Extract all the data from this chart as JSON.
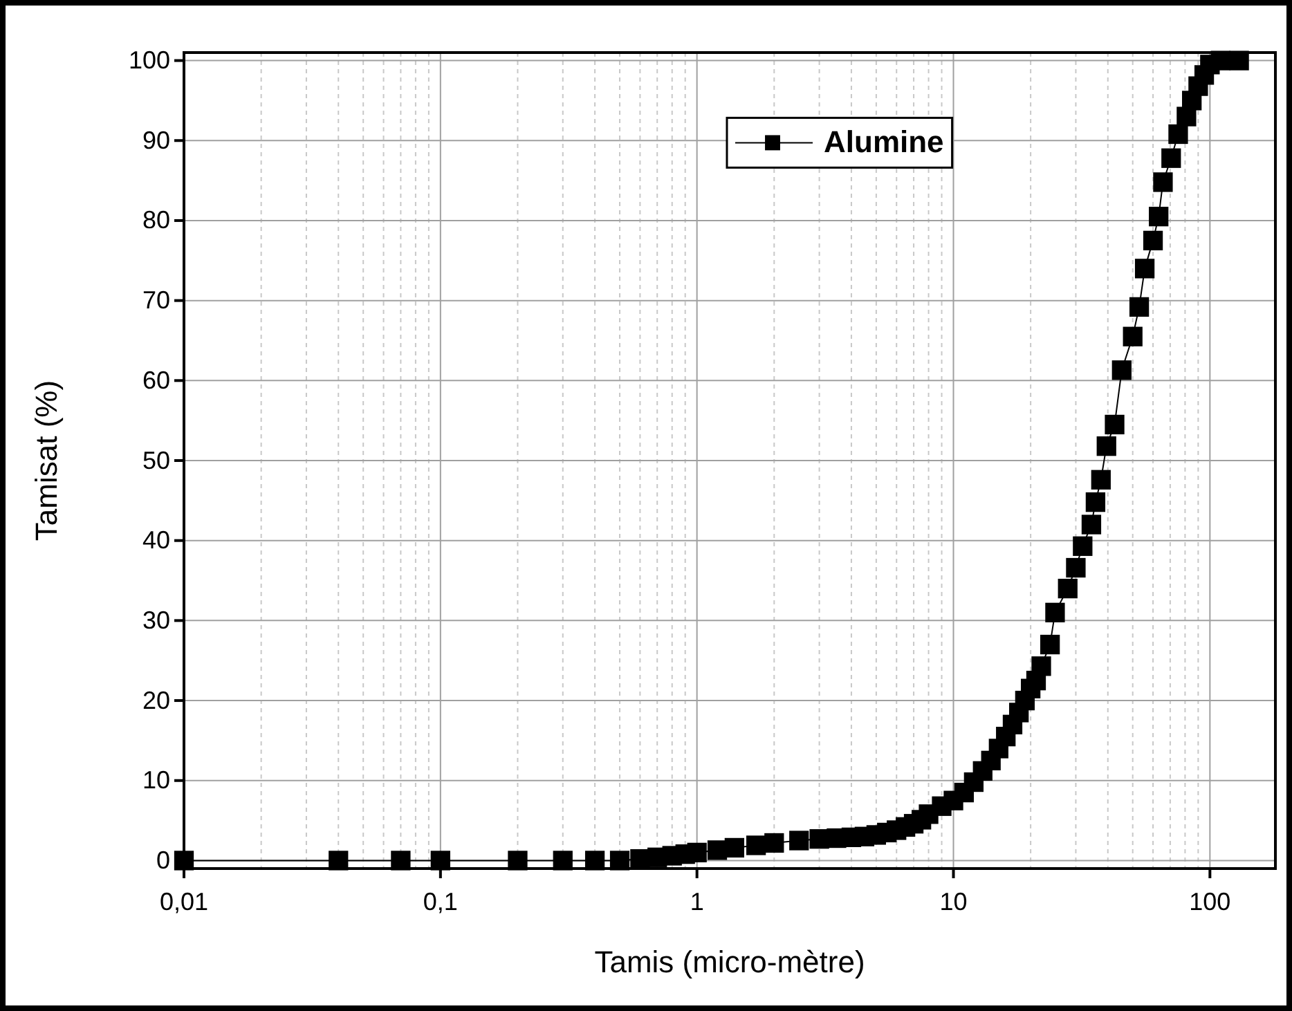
{
  "chart_data": {
    "type": "line",
    "xlabel": "Tamis (micro-mètre)",
    "ylabel": "Tamisat (%)",
    "log": "x",
    "grid": true,
    "legend": "top",
    "marker": "square",
    "line_style": "solid",
    "xlim": [
      0.01,
      180
    ],
    "ylim": [
      -1,
      101
    ],
    "xticks": [
      {
        "value": 0.01,
        "label": "0,01"
      },
      {
        "value": 0.1,
        "label": "0,1"
      },
      1,
      10,
      100
    ],
    "yticks": [
      0,
      10,
      20,
      30,
      40,
      50,
      60,
      70,
      80,
      90,
      100
    ],
    "series": [
      {
        "name": "Alumine",
        "color": "#000000",
        "x": [
          0.01,
          0.04,
          0.07,
          0.1,
          0.2,
          0.3,
          0.4,
          0.5,
          0.6,
          0.7,
          0.8,
          0.9,
          1,
          1.2,
          1.4,
          1.7,
          2,
          2.5,
          3,
          3.5,
          4,
          4.5,
          5,
          5.5,
          6,
          6.5,
          7,
          7.5,
          8,
          9,
          10,
          11,
          12,
          13,
          14,
          15,
          16,
          17,
          18,
          19,
          20,
          21,
          22,
          23.8,
          24.9,
          27.9,
          30,
          31.9,
          34.5,
          35.8,
          37.6,
          39.5,
          42.5,
          45.3,
          50,
          53,
          55.7,
          60,
          63.1,
          65.6,
          70.6,
          75.2,
          81,
          85,
          90,
          95,
          100,
          110,
          130
        ],
        "values": [
          0,
          0,
          0,
          0,
          0,
          0,
          0,
          0,
          0.2,
          0.4,
          0.6,
          0.8,
          1.0,
          1.3,
          1.6,
          1.9,
          2.2,
          2.5,
          2.7,
          2.8,
          2.9,
          3.0,
          3.2,
          3.5,
          3.8,
          4.2,
          4.6,
          5.1,
          5.8,
          6.8,
          7.5,
          8.5,
          9.8,
          11.2,
          12.5,
          14,
          15.5,
          17,
          18.5,
          20,
          21.5,
          22.5,
          24.3,
          27,
          31,
          34,
          36.6,
          39.3,
          42,
          44.8,
          47.6,
          51.8,
          54.5,
          61.3,
          65.5,
          69.2,
          74,
          77.5,
          80.5,
          84.8,
          87.8,
          90.8,
          93,
          95,
          96.8,
          98.2,
          99.5,
          100,
          100
        ]
      }
    ]
  }
}
